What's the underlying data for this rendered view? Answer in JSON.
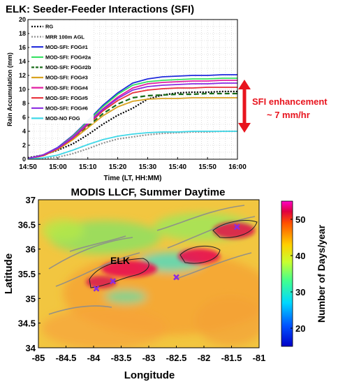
{
  "chart_data": [
    {
      "type": "line",
      "title": "ELK: Seeder-Feeder Interactions (SFI)",
      "xlabel": "Time (LT, HH:MM)",
      "ylabel": "Rain Accumulation (mm)",
      "x_ticks": [
        "14:50",
        "15:00",
        "15:10",
        "15:20",
        "15:30",
        "15:40",
        "15:50",
        "16:00"
      ],
      "y_ticks": [
        0,
        2,
        4,
        6,
        8,
        10,
        12,
        14,
        16,
        18,
        20
      ],
      "xlim": [
        "14:50",
        "16:00"
      ],
      "ylim": [
        0,
        20
      ],
      "grid": true,
      "legend_position": "top-left",
      "x": [
        "14:50",
        "14:55",
        "15:00",
        "15:05",
        "15:10",
        "15:15",
        "15:20",
        "15:25",
        "15:30",
        "15:35",
        "15:40",
        "15:45",
        "15:50",
        "15:55",
        "16:00"
      ],
      "series": [
        {
          "name": "RG",
          "color": "#000000",
          "style": "dotted",
          "values": [
            0.2,
            0.6,
            1.3,
            2.2,
            3.5,
            5.0,
            6.3,
            7.3,
            8.6,
            9.2,
            9.5,
            9.6,
            9.6,
            9.7,
            9.7
          ]
        },
        {
          "name": "MRR 100m AGL",
          "color": "#909090",
          "style": "dotted",
          "values": [
            0.0,
            0.1,
            0.3,
            0.8,
            1.5,
            2.3,
            2.9,
            3.2,
            3.5,
            3.7,
            3.8,
            3.9,
            3.9,
            4.0,
            4.0
          ]
        },
        {
          "name": "MOD-SFI: FOG#1",
          "color": "#1f2adc",
          "style": "solid",
          "values": [
            0.1,
            0.6,
            1.7,
            3.4,
            5.5,
            7.7,
            9.5,
            10.9,
            11.5,
            11.8,
            11.9,
            12.0,
            12.0,
            12.1,
            12.1
          ]
        },
        {
          "name": "MOD-SFI: FOG#2a",
          "color": "#33e060",
          "style": "solid",
          "values": [
            0.1,
            0.6,
            1.6,
            3.3,
            5.4,
            7.5,
            9.3,
            10.6,
            11.1,
            11.3,
            11.4,
            11.5,
            11.5,
            11.6,
            11.6
          ]
        },
        {
          "name": "MOD-SFI: FOG#2b",
          "color": "#1a6b1a",
          "style": "dashed",
          "values": [
            0.1,
            0.5,
            1.4,
            2.9,
            4.7,
            6.5,
            7.9,
            8.8,
            9.1,
            9.2,
            9.3,
            9.3,
            9.4,
            9.4,
            9.4
          ]
        },
        {
          "name": "MOD-SFI: FOG#3",
          "color": "#d9a320",
          "style": "solid",
          "values": [
            0.1,
            0.5,
            1.4,
            2.8,
            4.5,
            6.2,
            7.5,
            8.3,
            8.6,
            8.7,
            8.7,
            8.8,
            8.8,
            8.8,
            8.8
          ]
        },
        {
          "name": "MOD-SFI: FOG#4",
          "color": "#e21ea0",
          "style": "solid",
          "values": [
            0.1,
            0.6,
            1.6,
            3.2,
            5.2,
            7.2,
            8.9,
            10.2,
            10.8,
            11.0,
            11.1,
            11.2,
            11.2,
            11.3,
            11.3
          ]
        },
        {
          "name": "MOD-SFI: FOG#5",
          "color": "#e8303a",
          "style": "solid",
          "values": [
            0.1,
            0.5,
            1.5,
            3.0,
            4.9,
            6.9,
            8.4,
            9.5,
            9.9,
            10.1,
            10.2,
            10.2,
            10.3,
            10.3,
            10.3
          ]
        },
        {
          "name": "MOD-SFI: FOG#6",
          "color": "#8a2be2",
          "style": "solid",
          "values": [
            0.1,
            0.6,
            1.6,
            3.1,
            5.1,
            7.1,
            8.7,
            9.9,
            10.4,
            10.6,
            10.7,
            10.8,
            10.8,
            10.9,
            10.9
          ]
        },
        {
          "name": "MOD-NO FOG",
          "color": "#3fd8e8",
          "style": "solid",
          "values": [
            0.0,
            0.2,
            0.6,
            1.3,
            2.1,
            2.8,
            3.3,
            3.6,
            3.8,
            3.9,
            3.9,
            4.0,
            4.0,
            4.0,
            4.0
          ]
        }
      ],
      "annotation": {
        "line1": "SFI enhancement",
        "line2": "~ 7 mm/hr",
        "color": "#e8141e",
        "y_range": [
          4.0,
          11.5
        ]
      }
    },
    {
      "type": "heatmap",
      "title": "MODIS LLCF, Summer Daytime",
      "xlabel": "Longitude",
      "ylabel": "Latitude",
      "x_ticks": [
        "-85",
        "-84.5",
        "-84",
        "-83.5",
        "-83",
        "-82.5",
        "-82",
        "-81.5",
        "-81"
      ],
      "y_ticks": [
        "34",
        "34.5",
        "35",
        "35.5",
        "36",
        "36.5",
        "37"
      ],
      "xlim": [
        -85,
        -81
      ],
      "ylim": [
        34,
        37
      ],
      "colorbar": {
        "label": "Number of Days/year",
        "ticks": [
          20,
          30,
          40,
          50
        ],
        "range": [
          15,
          55
        ],
        "colormap": "jet"
      },
      "site_label": "ELK",
      "markers": [
        {
          "lon": -83.65,
          "lat": 35.35
        },
        {
          "lon": -82.5,
          "lat": 35.43
        },
        {
          "lon": -81.4,
          "lat": 36.45
        },
        {
          "lon": -83.95,
          "lat": 35.2
        }
      ],
      "high_zones": [
        {
          "lon": -83.55,
          "lat": 35.5,
          "value": 50
        },
        {
          "lon": -82.2,
          "lat": 35.75,
          "value": 49
        },
        {
          "lon": -81.9,
          "lat": 36.2,
          "value": 48
        },
        {
          "lon": -83.95,
          "lat": 35.25,
          "value": 45
        }
      ]
    }
  ]
}
